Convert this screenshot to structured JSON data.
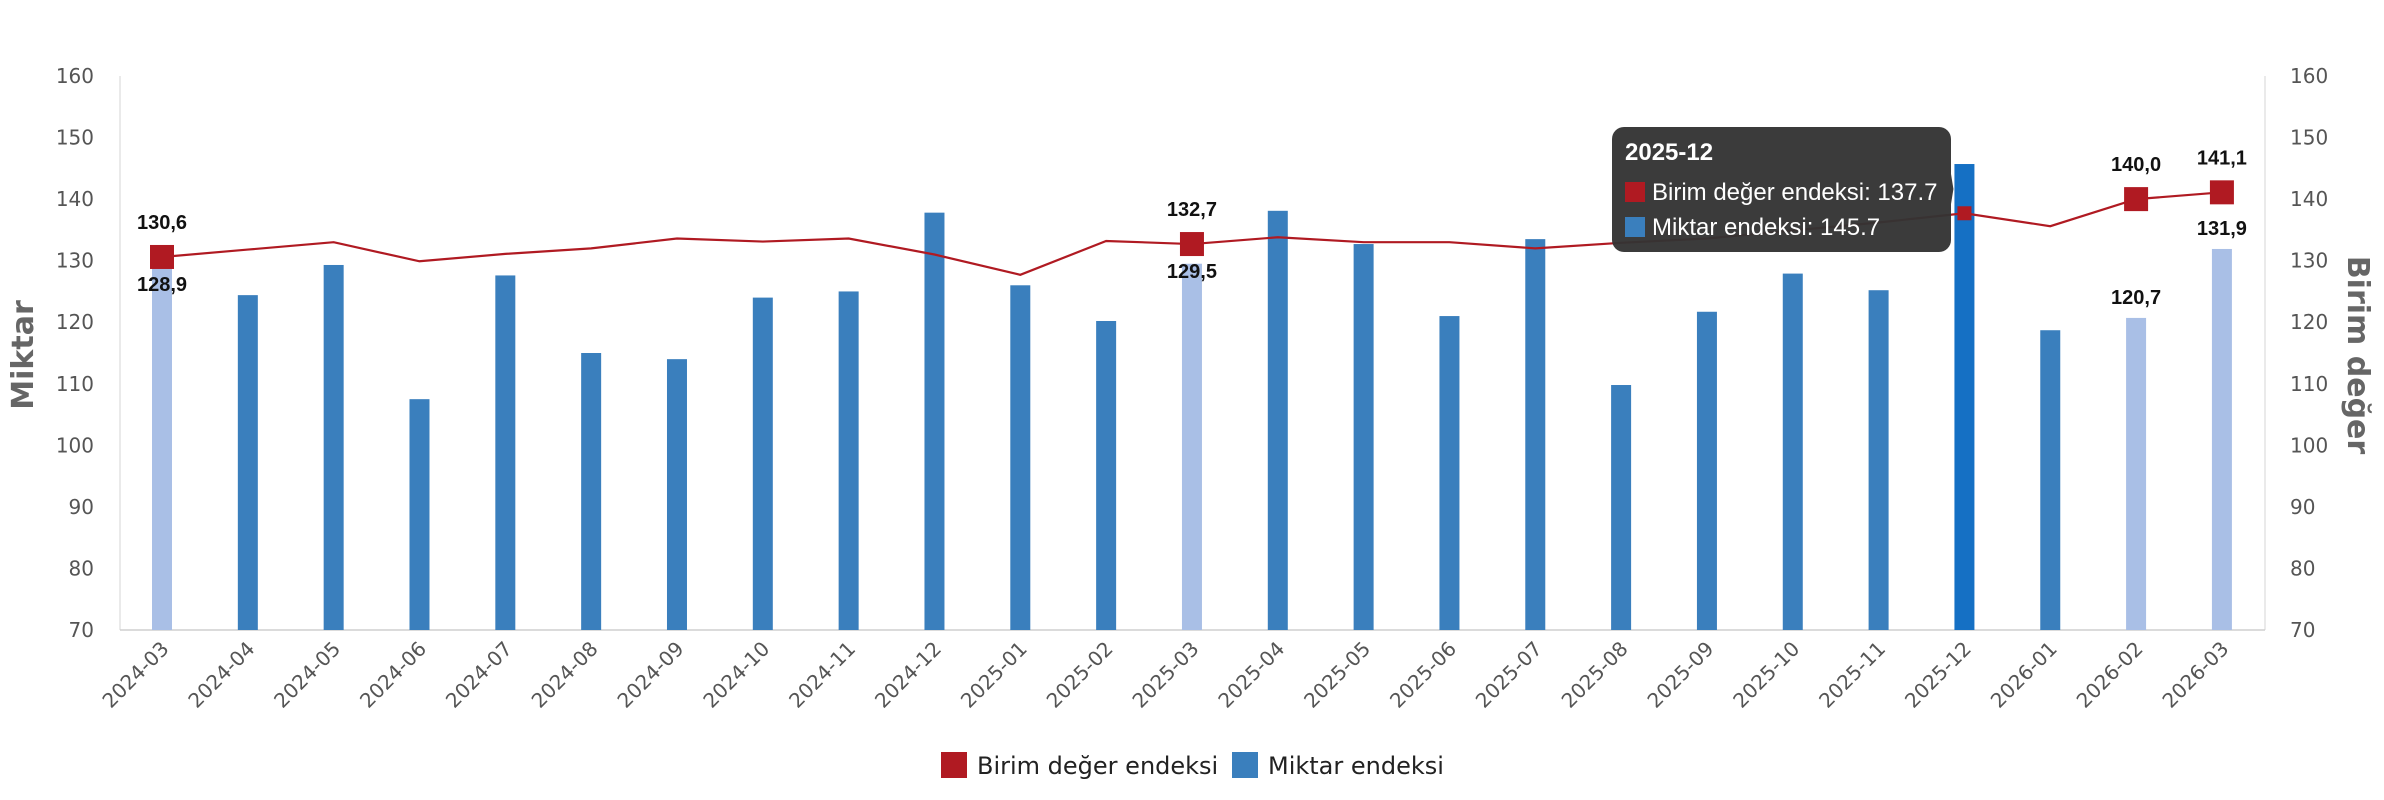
{
  "chart_data": {
    "type": "bar",
    "categories": [
      "2024-03",
      "2024-04",
      "2024-05",
      "2024-06",
      "2024-07",
      "2024-08",
      "2024-09",
      "2024-10",
      "2024-11",
      "2024-12",
      "2025-01",
      "2025-02",
      "2025-03",
      "2025-04",
      "2025-05",
      "2025-06",
      "2025-07",
      "2025-08",
      "2025-09",
      "2025-10",
      "2025-11",
      "2025-12",
      "2026-01",
      "2026-02",
      "2026-03"
    ],
    "series": [
      {
        "name": "Birim değer endeksi",
        "type": "line",
        "axis": "right",
        "color": "#b01a22",
        "values": [
          130.6,
          131.8,
          133.0,
          129.9,
          131.1,
          132.0,
          133.6,
          133.1,
          133.6,
          131.0,
          127.7,
          133.2,
          132.7,
          133.8,
          133.0,
          133.0,
          132.0,
          132.9,
          133.6,
          134.9,
          136.2,
          137.7,
          135.6,
          140.0,
          141.1
        ]
      },
      {
        "name": "Miktar endeksi",
        "type": "bar",
        "axis": "left",
        "color": "#3a7fbd",
        "highlight_color": "#a9bfe6",
        "active_color": "#1570c4",
        "values": [
          128.9,
          124.4,
          129.3,
          107.5,
          127.6,
          115.0,
          114.0,
          124.0,
          125.0,
          137.8,
          126.0,
          120.2,
          129.5,
          138.1,
          132.7,
          121.0,
          133.5,
          109.8,
          121.7,
          127.9,
          125.2,
          145.7,
          118.7,
          120.7,
          131.9
        ],
        "highlighted_categories": [
          "2024-03",
          "2025-03",
          "2026-02",
          "2026-03"
        ]
      }
    ],
    "data_labels": [
      {
        "category": "2024-03",
        "line": "130,6",
        "bar": "128,9"
      },
      {
        "category": "2025-03",
        "line": "132,7",
        "bar": "129,5"
      },
      {
        "category": "2026-02",
        "line": "140,0",
        "bar": "120,7"
      },
      {
        "category": "2026-03",
        "line": "141,1",
        "bar": "131,9"
      }
    ],
    "y_left": {
      "label": "Miktar",
      "lim": [
        70,
        160
      ],
      "ticks": [
        70,
        80,
        90,
        100,
        110,
        120,
        130,
        140,
        150,
        160
      ]
    },
    "y_right": {
      "label": "Birim değer",
      "lim": [
        70,
        160
      ],
      "ticks": [
        70,
        80,
        90,
        100,
        110,
        120,
        130,
        140,
        150,
        160
      ]
    },
    "grid": false,
    "legend": {
      "position": "bottom",
      "items": [
        "Birim değer endeksi",
        "Miktar endeksi"
      ]
    },
    "tooltip": {
      "category": "2025-12",
      "title": "2025-12",
      "lines": [
        "Birim değer endeksi: 137.7",
        "Miktar endeksi: 145.7"
      ]
    }
  }
}
